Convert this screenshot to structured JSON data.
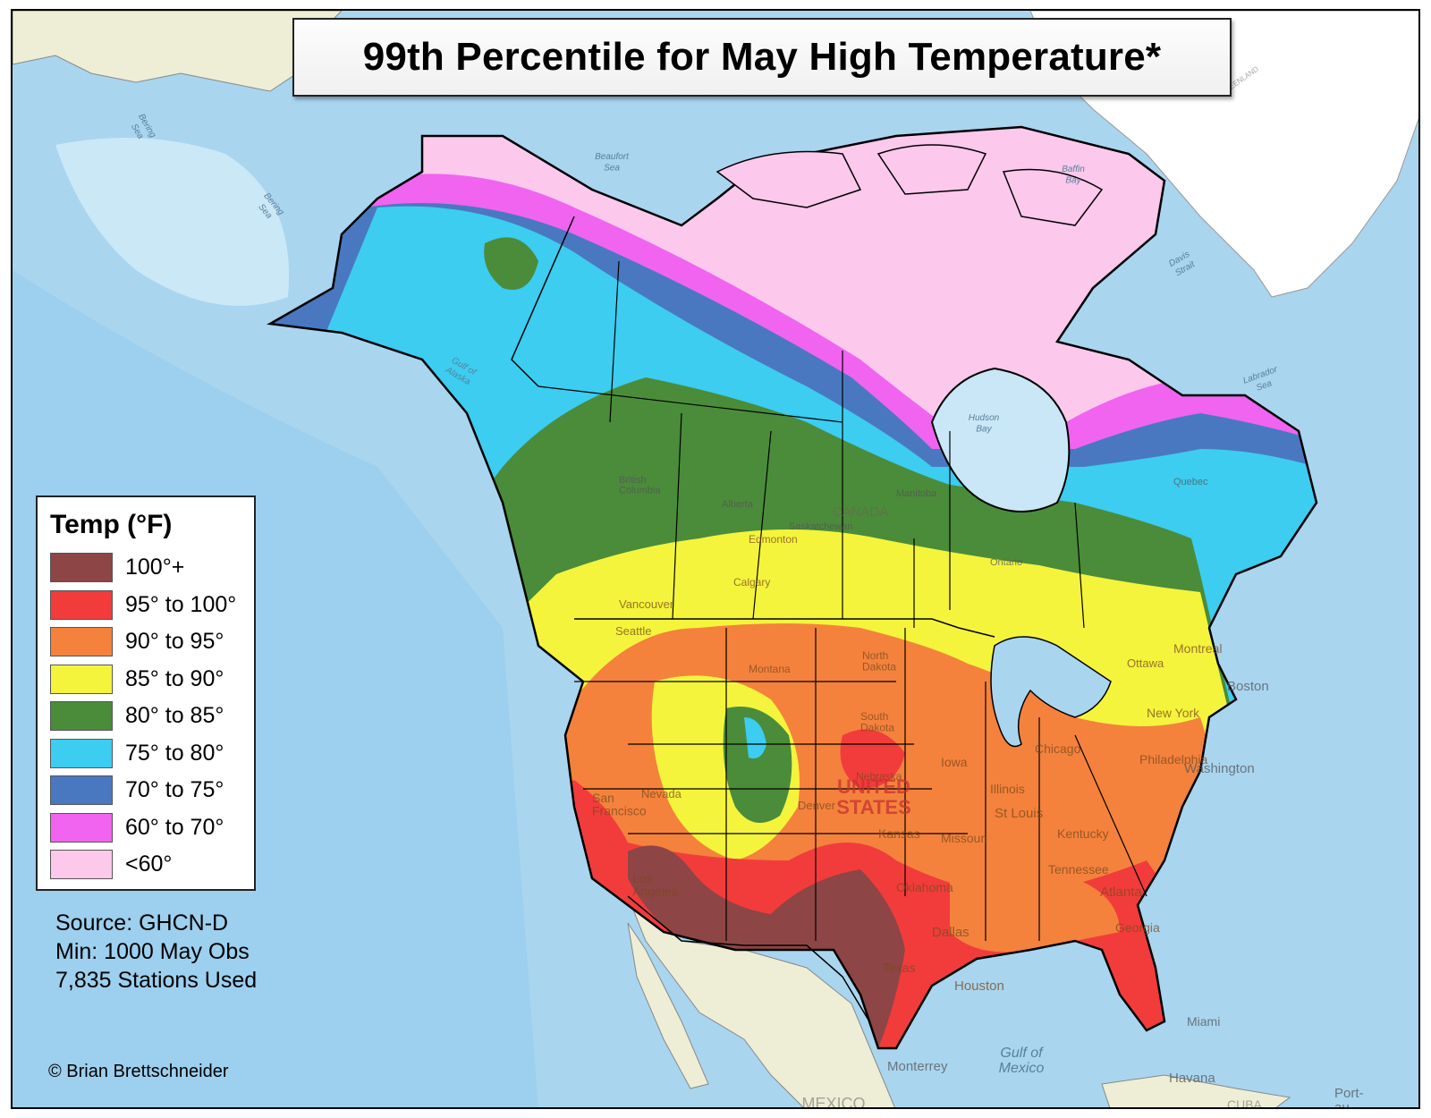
{
  "title": "99th Percentile for May High Temperature*",
  "legend": {
    "title": "Temp (°F)",
    "items": [
      {
        "label": "100°+",
        "color": "#8e4545"
      },
      {
        "label": "95° to 100°",
        "color": "#f23c3c"
      },
      {
        "label": "90° to 95°",
        "color": "#f4823c"
      },
      {
        "label": "85° to 90°",
        "color": "#f4f43c"
      },
      {
        "label": "80° to 85°",
        "color": "#4a8c3a"
      },
      {
        "label": "75° to 80°",
        "color": "#3ccdf0"
      },
      {
        "label": "70° to 75°",
        "color": "#4a78c0"
      },
      {
        "label": "60° to 70°",
        "color": "#f064f0"
      },
      {
        "label": "<60°",
        "color": "#fcc8ec"
      }
    ]
  },
  "source": {
    "line1": "Source: GHCN-D",
    "line2": "Min: 1000 May Obs",
    "line3": "7,835 Stations Used"
  },
  "credit": "© Brian Brettschneider",
  "colors": {
    "ocean": "#a9d5ef",
    "ocean_deep": "#8fc6e8",
    "land": "#efefd6",
    "ice": "#ffffff"
  },
  "map_labels": {
    "water": [
      {
        "name": "Bering Sea",
        "text": "Bering\nSea"
      },
      {
        "name": "Bering Sea lower",
        "text": "Bering\nSea"
      },
      {
        "name": "Beaufort Sea",
        "text": "Beaufort\nSea"
      },
      {
        "name": "Gulf of Alaska",
        "text": "Gulf of\nAlaska"
      },
      {
        "name": "Hudson Bay",
        "text": "Hudson\nBay"
      },
      {
        "name": "Davis Strait",
        "text": "Davis\nStrait"
      },
      {
        "name": "Labrador Sea",
        "text": "Labrador\nSea"
      },
      {
        "name": "Gulf of Mexico",
        "text": "Gulf of\nMexico"
      },
      {
        "name": "Baffin Bay",
        "text": "Baffin\nBay"
      }
    ],
    "places": {
      "canada": "CANADA",
      "united_states": "UNITED\nSTATES",
      "greenland": "GREENLAND",
      "mexico": "MEXICO",
      "cuba": "CUBA",
      "edmonton": "Edmonton",
      "calgary": "Calgary",
      "vancouver": "Vancouver",
      "seattle": "Seattle",
      "denver": "Denver",
      "los_angeles": "Los\nAngeles",
      "san_francisco": "San\nFrancisco",
      "dallas": "Dallas",
      "houston": "Houston",
      "atlanta": "Atlanta",
      "miami": "Miami",
      "havana": "Havana",
      "chicago": "Chicago",
      "st_louis": "St Louis",
      "philadelphia": "Philadelphia",
      "washington": "Washington",
      "boston": "Boston",
      "montreal": "Montreal",
      "ottawa": "Ottawa",
      "new_york": "New York",
      "monterrey": "Monterrey",
      "port_au": "Port-\nau-",
      "north_dakota": "North\nDakota",
      "south_dakota": "South\nDakota",
      "nebraska": "Nebraska",
      "kansas": "Kansas",
      "oklahoma": "Oklahoma",
      "texas": "Texas",
      "iowa": "Iowa",
      "missouri": "Missouri",
      "illinois": "Illinois",
      "tennessee": "Tennessee",
      "georgia": "Georgia",
      "kentucky": "Kentucky",
      "nevada": "Nevada",
      "montana": "Montana",
      "manitoba": "Manitoba",
      "ontario": "Ontario",
      "quebec": "Quebec",
      "alberta": "Alberta",
      "british_columbia": "British\nColumbia",
      "saskatchewan": "Saskatchewan"
    }
  }
}
